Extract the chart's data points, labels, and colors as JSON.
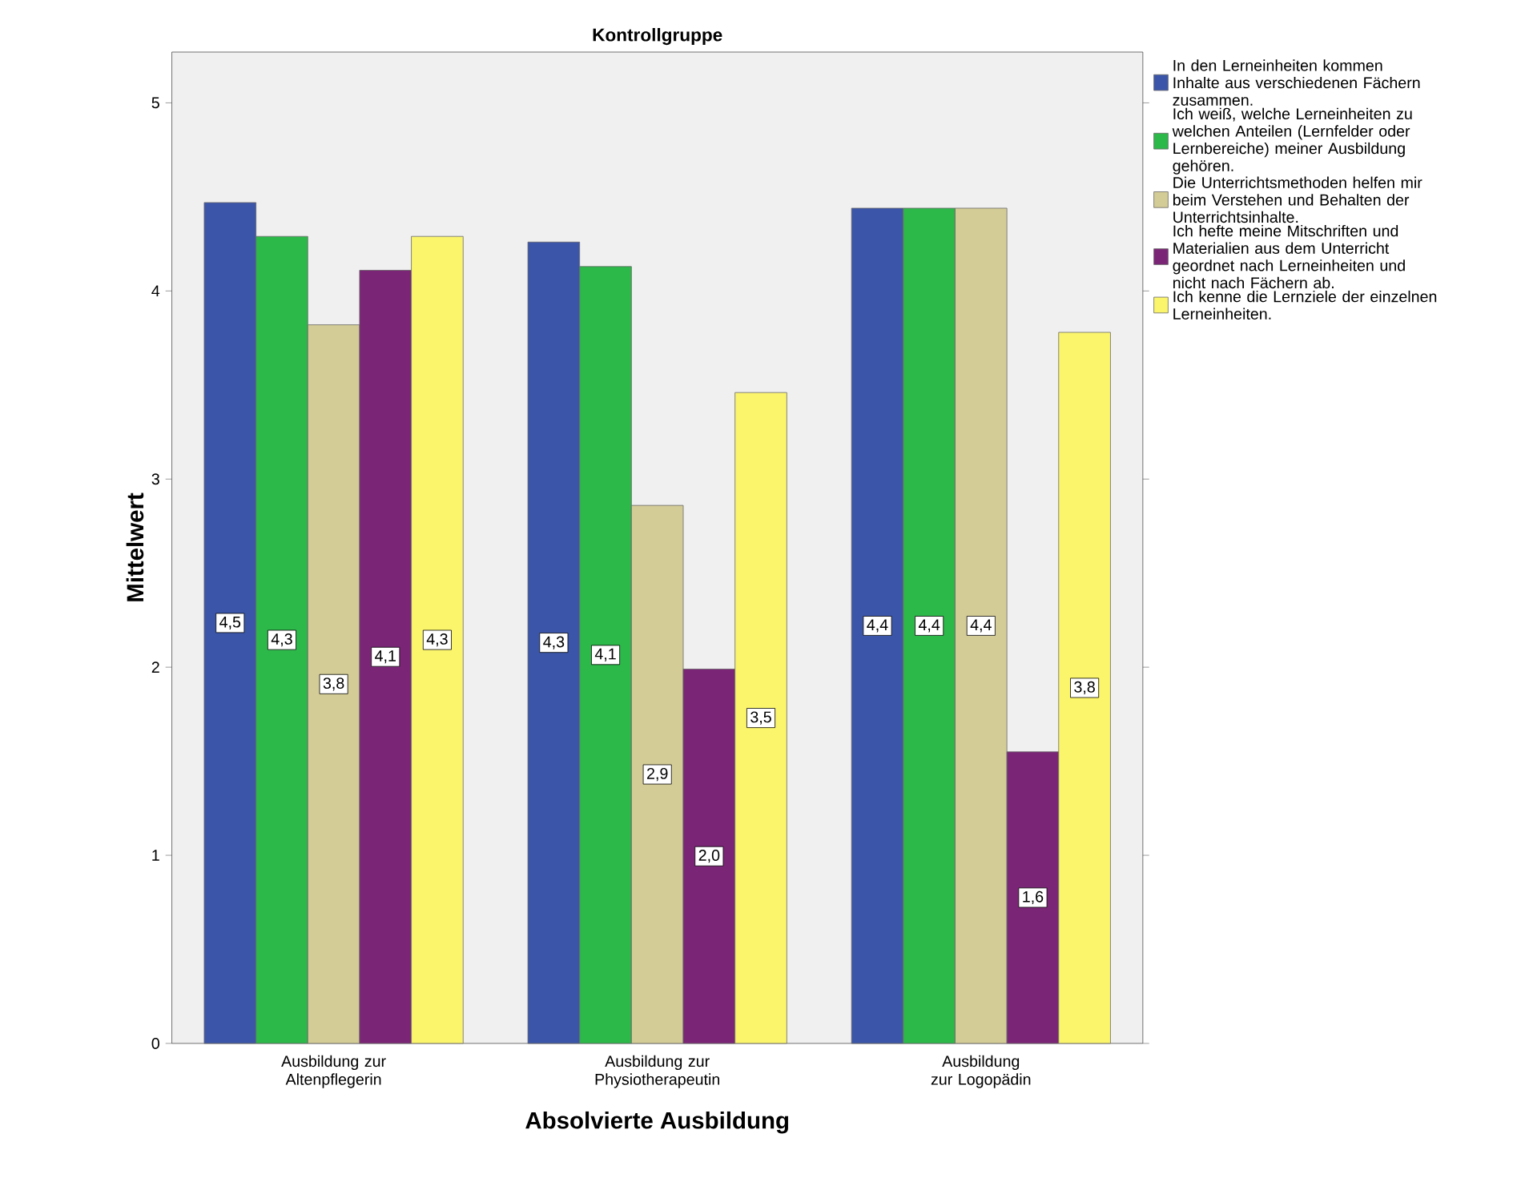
{
  "chart_data": {
    "type": "bar",
    "title": "Kontrollgruppe",
    "xlabel": "Absolvierte Ausbildung",
    "ylabel": "Mittelwert",
    "categories": [
      "Ausbildung zur Altenpflegerin",
      "Ausbildung zur Physiotherapeutin",
      "Ausbildung zur Logopädin"
    ],
    "ylim": [
      0,
      5.27
    ],
    "yticks": [
      0,
      1,
      2,
      3,
      4,
      5
    ],
    "grid": false,
    "legend": "right",
    "series": [
      {
        "name": "In den Lerneinheiten kommen Inhalte aus verschiedenen Fächern zusammen.",
        "color": "#3b55a8",
        "values": [
          4.47,
          4.26,
          4.44
        ],
        "value_labels": [
          "4,5",
          "4,3",
          "4,4"
        ]
      },
      {
        "name": "Ich weiß, welche Lerneinheiten zu welchen Anteilen (Lernfelder oder Lernbereiche) meiner Ausbildung gehören.",
        "color": "#2db84a",
        "values": [
          4.29,
          4.13,
          4.44
        ],
        "value_labels": [
          "4,3",
          "4,1",
          "4,4"
        ]
      },
      {
        "name": "Die Unterrichtsmethoden helfen mir beim Verstehen und Behalten der Unterrichtsinhalte.",
        "color": "#d4cc96",
        "values": [
          3.82,
          2.86,
          4.44
        ],
        "value_labels": [
          "3,8",
          "2,9",
          "4,4"
        ]
      },
      {
        "name": "Ich hefte meine Mitschriften und Materialien aus dem Unterricht geordnet nach Lerneinheiten und nicht nach Fächern ab.",
        "color": "#7b2576",
        "values": [
          4.11,
          1.99,
          1.55
        ],
        "value_labels": [
          "4,1",
          "2,0",
          "1,6"
        ]
      },
      {
        "name": "Ich kenne die Lernziele der einzelnen Lerneinheiten.",
        "color": "#fbf56b",
        "values": [
          4.29,
          3.46,
          3.78
        ],
        "value_labels": [
          "4,3",
          "3,5",
          "3,8"
        ]
      }
    ]
  }
}
